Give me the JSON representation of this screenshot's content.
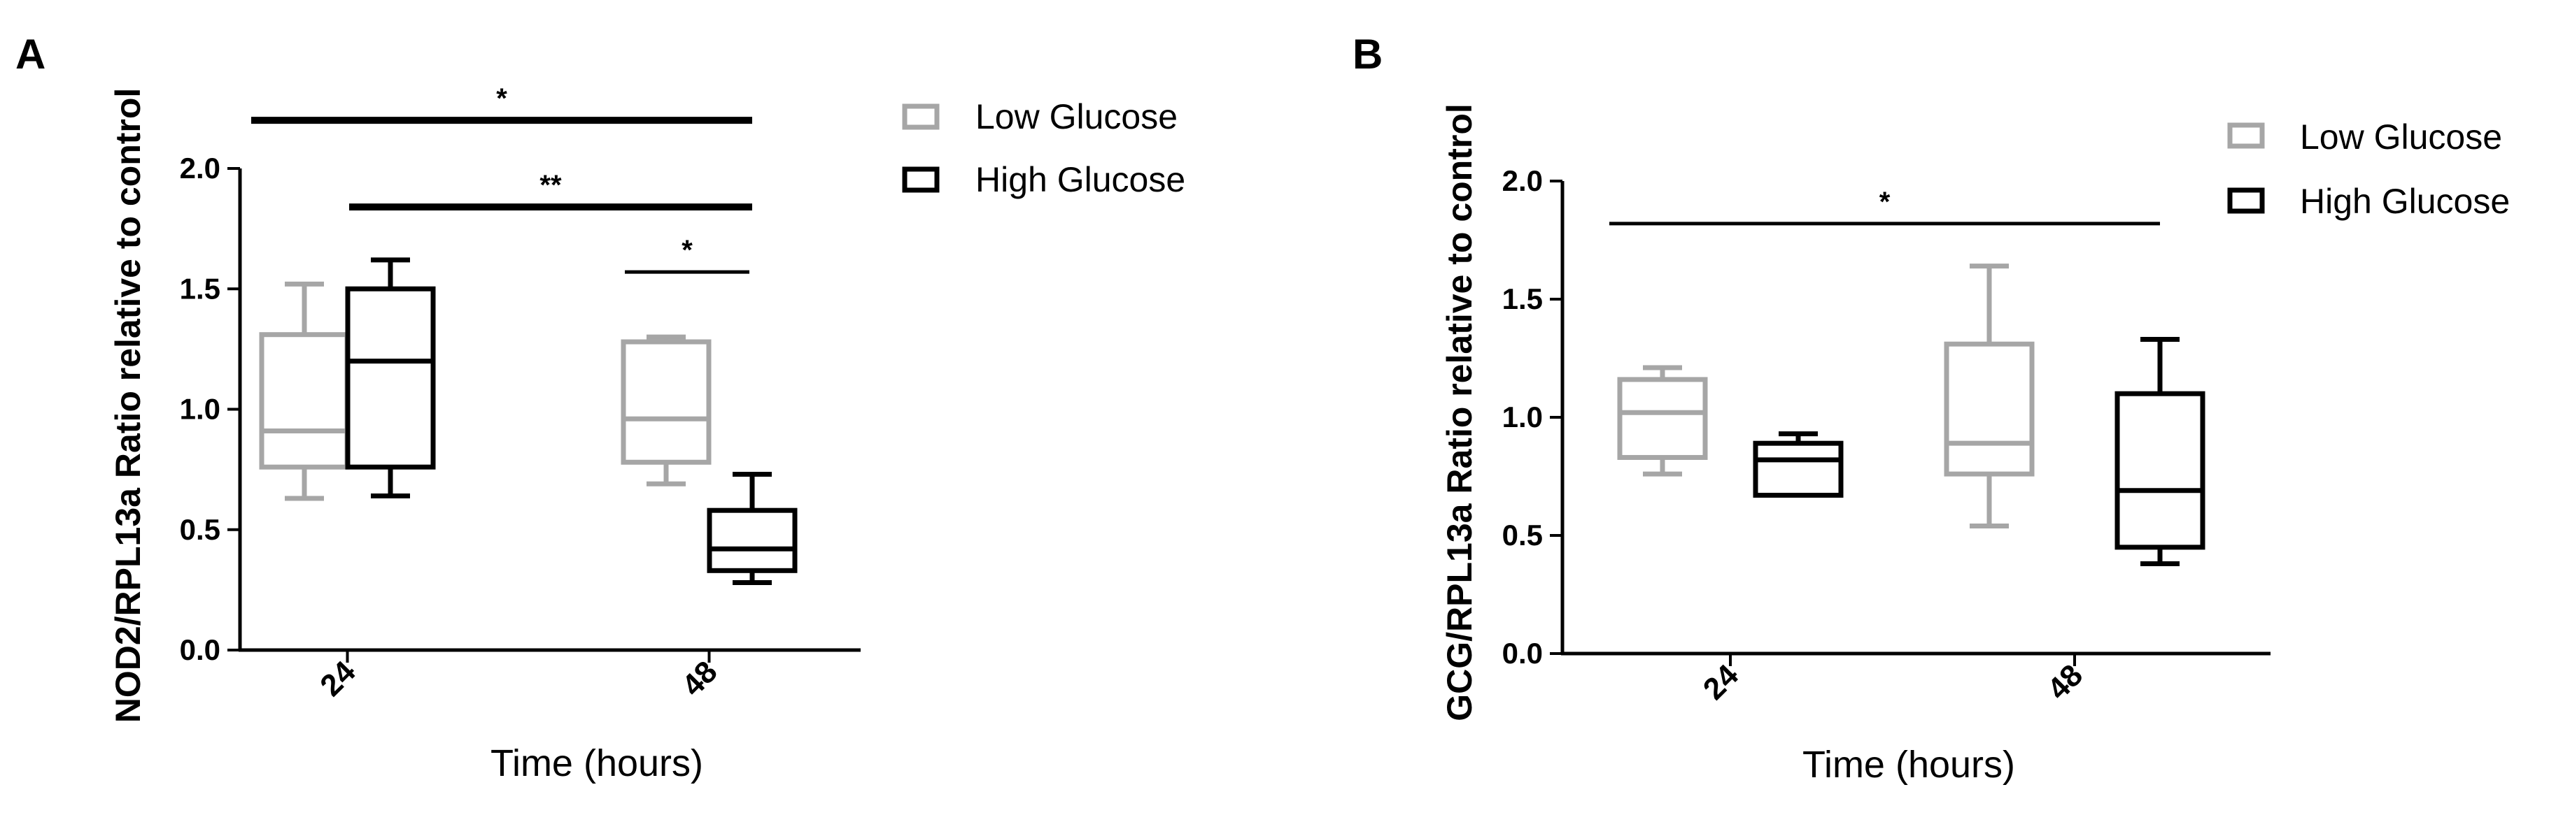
{
  "chart_data": [
    {
      "panel": "A",
      "type": "box",
      "ylabel": "NOD2/RPL13a Ratio relative to control",
      "xlabel": "Time (hours)",
      "categories": [
        "24",
        "48"
      ],
      "ylim": [
        0,
        2.0
      ],
      "yticks": [
        "0.0",
        "0.5",
        "1.0",
        "1.5",
        "2.0"
      ],
      "legend": {
        "placement": "top-right",
        "entries": [
          "Low Glucose",
          "High Glucose"
        ]
      },
      "series": [
        {
          "name": "Low Glucose",
          "color": "#a6a6a6",
          "boxes": [
            {
              "category": "24",
              "min": 0.63,
              "q1": 0.76,
              "median": 0.91,
              "q3": 1.31,
              "max": 1.52
            },
            {
              "category": "48",
              "min": 0.69,
              "q1": 0.78,
              "median": 0.96,
              "q3": 1.28,
              "max": 1.3
            }
          ]
        },
        {
          "name": "High Glucose",
          "color": "#000000",
          "boxes": [
            {
              "category": "24",
              "min": 0.64,
              "q1": 0.76,
              "median": 1.2,
              "q3": 1.5,
              "max": 1.62
            },
            {
              "category": "48",
              "min": 0.28,
              "q1": 0.33,
              "median": 0.42,
              "q3": 0.58,
              "max": 0.73
            }
          ]
        }
      ],
      "significance": [
        {
          "label": "*",
          "from": {
            "category": "24",
            "series": 0
          },
          "to": {
            "category": "48",
            "series": 1
          },
          "y": 2.2
        },
        {
          "label": "**",
          "from": {
            "category": "24",
            "series": 1
          },
          "to": {
            "category": "48",
            "series": 1
          },
          "y": 1.84
        },
        {
          "label": "*",
          "from": {
            "category": "48",
            "series": 0
          },
          "to": {
            "category": "48",
            "series": 1
          },
          "y": 1.57
        }
      ]
    },
    {
      "panel": "B",
      "type": "box",
      "ylabel": "GCG/RPL13a Ratio relative to control",
      "xlabel": "Time (hours)",
      "categories": [
        "24",
        "48"
      ],
      "ylim": [
        0,
        2.0
      ],
      "yticks": [
        "0.0",
        "0.5",
        "1.0",
        "1.5",
        "2.0"
      ],
      "legend": {
        "placement": "top-right",
        "entries": [
          "Low Glucose",
          "High Glucose"
        ]
      },
      "series": [
        {
          "name": "Low Glucose",
          "color": "#a6a6a6",
          "boxes": [
            {
              "category": "24",
              "min": 0.76,
              "q1": 0.83,
              "median": 1.02,
              "q3": 1.16,
              "max": 1.21
            },
            {
              "category": "48",
              "min": 0.54,
              "q1": 0.76,
              "median": 0.89,
              "q3": 1.31,
              "max": 1.64
            }
          ]
        },
        {
          "name": "High Glucose",
          "color": "#000000",
          "boxes": [
            {
              "category": "24",
              "min": 0.67,
              "q1": 0.67,
              "median": 0.82,
              "q3": 0.89,
              "max": 0.93
            },
            {
              "category": "48",
              "min": 0.38,
              "q1": 0.45,
              "median": 0.69,
              "q3": 1.1,
              "max": 1.33
            }
          ]
        }
      ],
      "significance": [
        {
          "label": "*",
          "from": {
            "category": "24",
            "series": 0
          },
          "to": {
            "category": "48",
            "series": 1
          },
          "y": 1.82
        }
      ]
    }
  ]
}
